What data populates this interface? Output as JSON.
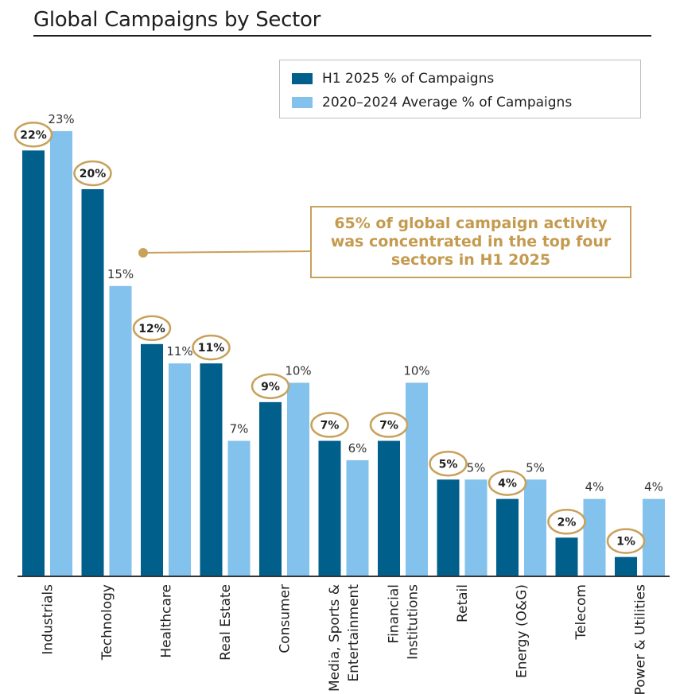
{
  "title": "Global Campaigns by Sector",
  "legend": {
    "items": [
      {
        "label": "H1 2025 % of Campaigns",
        "color": "#005f8b"
      },
      {
        "label": "2020–2024 Average % of Campaigns",
        "color": "#82c2ec"
      }
    ]
  },
  "callout": {
    "text": "65% of global campaign activity was concentrated in the top four sectors in H1 2025",
    "color": "#c8a15a"
  },
  "chart_data": {
    "type": "bar",
    "title": "Global Campaigns by Sector",
    "xlabel": "",
    "ylabel": "",
    "ylim": [
      0,
      24
    ],
    "grid": false,
    "legend_position": "top-right",
    "categories": [
      "Industrials",
      "Technology",
      "Healthcare",
      "Real Estate",
      "Consumer",
      "Media, Sports & Entertainment",
      "Financial Institutions",
      "Retail",
      "Energy (O&G)",
      "Telecom",
      "Power & Utilities"
    ],
    "category_lines": [
      [
        "Industrials"
      ],
      [
        "Technology"
      ],
      [
        "Healthcare"
      ],
      [
        "Real Estate"
      ],
      [
        "Consumer"
      ],
      [
        "Media, Sports &",
        "Entertainment"
      ],
      [
        "Financial",
        "Institutions"
      ],
      [
        "Retail"
      ],
      [
        "Energy (O&G)"
      ],
      [
        "Telecom"
      ],
      [
        "Power & Utilities"
      ]
    ],
    "series": [
      {
        "name": "H1 2025 % of Campaigns",
        "color": "#005f8b",
        "values": [
          22,
          20,
          12,
          11,
          9,
          7,
          7,
          5,
          4,
          2,
          1
        ],
        "labels": [
          "22%",
          "20%",
          "12%",
          "11%",
          "9%",
          "7%",
          "7%",
          "5%",
          "4%",
          "2%",
          "1%"
        ]
      },
      {
        "name": "2020–2024 Average % of Campaigns",
        "color": "#82c2ec",
        "values": [
          23,
          15,
          11,
          7,
          10,
          6,
          10,
          5,
          5,
          4,
          4
        ],
        "labels": [
          "23%",
          "15%",
          "11%",
          "7%",
          "10%",
          "6%",
          "10%",
          "5%",
          "5%",
          "4%",
          "4%"
        ]
      }
    ],
    "highlight_color": "#c8a15a"
  }
}
